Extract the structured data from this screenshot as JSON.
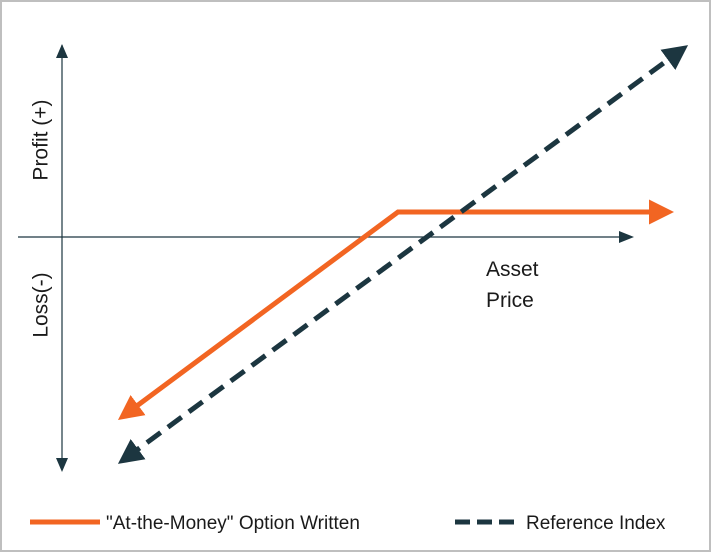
{
  "axes": {
    "y_positive": "Profit (+)",
    "y_negative": "Loss(-)",
    "x_label": [
      "Asset",
      "Price"
    ]
  },
  "legend": [
    {
      "name": "\"At-the-Money\" Option Written"
    },
    {
      "name": "Reference Index"
    }
  ]
}
